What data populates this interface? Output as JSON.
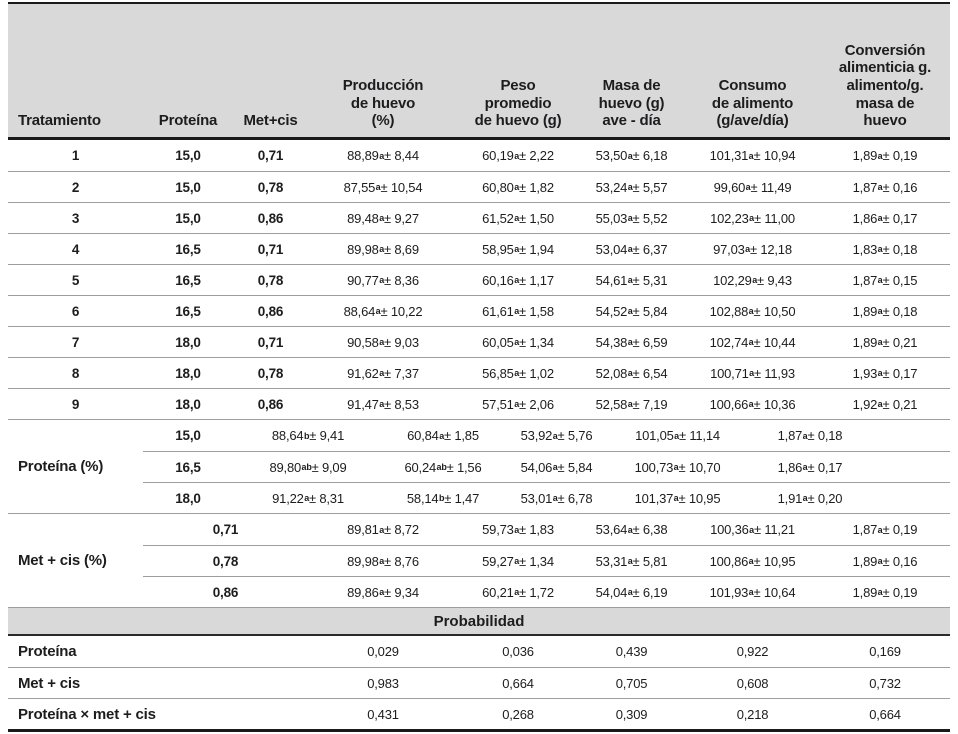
{
  "table": {
    "columns": [
      "Tratamiento",
      "Proteína",
      "Met+cis",
      "Producción\nde huevo\n(%)",
      "Peso\npromedio\nde huevo (g)",
      "Masa de\nhuevo (g)\nave - día",
      "Consumo\nde alimento\n(g/ave/día)",
      "Conversión\nalimenticia g.\nalimento/g.\nmasa de\nhuevo"
    ],
    "treatments": [
      {
        "tratamiento": "1",
        "proteina": "15,0",
        "metcis": "0,71",
        "values": [
          [
            "88,89",
            "a",
            "8,44"
          ],
          [
            "60,19",
            "a",
            "2,22"
          ],
          [
            "53,50",
            "a",
            "6,18"
          ],
          [
            "101,31",
            "a",
            "10,94"
          ],
          [
            "1,89",
            "a",
            "0,19"
          ]
        ]
      },
      {
        "tratamiento": "2",
        "proteina": "15,0",
        "metcis": "0,78",
        "values": [
          [
            "87,55",
            "a",
            "10,54"
          ],
          [
            "60,80",
            "a",
            "1,82"
          ],
          [
            "53,24",
            "a",
            "5,57"
          ],
          [
            "99,60",
            "a",
            "11,49"
          ],
          [
            "1,87",
            "a",
            "0,16"
          ]
        ]
      },
      {
        "tratamiento": "3",
        "proteina": "15,0",
        "metcis": "0,86",
        "values": [
          [
            "89,48",
            "a",
            "9,27"
          ],
          [
            "61,52",
            "a",
            "1,50"
          ],
          [
            "55,03",
            "a",
            "5,52"
          ],
          [
            "102,23",
            "a",
            "11,00"
          ],
          [
            "1,86",
            "a",
            "0,17"
          ]
        ]
      },
      {
        "tratamiento": "4",
        "proteina": "16,5",
        "metcis": "0,71",
        "values": [
          [
            "89,98",
            "a",
            "8,69"
          ],
          [
            "58,95",
            "a",
            "1,94"
          ],
          [
            "53,04",
            "a",
            "6,37"
          ],
          [
            "97,03",
            "a",
            "12,18"
          ],
          [
            "1,83",
            "a",
            "0,18"
          ]
        ]
      },
      {
        "tratamiento": "5",
        "proteina": "16,5",
        "metcis": "0,78",
        "values": [
          [
            "90,77",
            "a",
            "8,36"
          ],
          [
            "60,16",
            "a",
            "1,17"
          ],
          [
            "54,61",
            "a",
            "5,31"
          ],
          [
            "102,29",
            "a",
            "9,43"
          ],
          [
            "1,87",
            "a",
            "0,15"
          ]
        ]
      },
      {
        "tratamiento": "6",
        "proteina": "16,5",
        "metcis": "0,86",
        "values": [
          [
            "88,64",
            "a",
            "10,22"
          ],
          [
            "61,61",
            "a",
            "1,58"
          ],
          [
            "54,52",
            "a",
            "5,84"
          ],
          [
            "102,88",
            "a",
            "10,50"
          ],
          [
            "1,89",
            "a",
            "0,18"
          ]
        ]
      },
      {
        "tratamiento": "7",
        "proteina": "18,0",
        "metcis": "0,71",
        "values": [
          [
            "90,58",
            "a",
            "9,03"
          ],
          [
            "60,05",
            "a",
            "1,34"
          ],
          [
            "54,38",
            "a",
            "6,59"
          ],
          [
            "102,74",
            "a",
            "10,44"
          ],
          [
            "1,89",
            "a",
            "0,21"
          ]
        ]
      },
      {
        "tratamiento": "8",
        "proteina": "18,0",
        "metcis": "0,78",
        "values": [
          [
            "91,62",
            "a",
            "7,37"
          ],
          [
            "56,85",
            "a",
            "1,02"
          ],
          [
            "52,08",
            "a",
            "6,54"
          ],
          [
            "100,71",
            "a",
            "11,93"
          ],
          [
            "1,93",
            "a",
            "0,17"
          ]
        ]
      },
      {
        "tratamiento": "9",
        "proteina": "18,0",
        "metcis": "0,86",
        "values": [
          [
            "91,47",
            "a",
            "8,53"
          ],
          [
            "57,51",
            "a",
            "2,06"
          ],
          [
            "52,58",
            "a",
            "7,19"
          ],
          [
            "100,66",
            "a",
            "10,36"
          ],
          [
            "1,92",
            "a",
            "0,21"
          ]
        ]
      }
    ],
    "protein_section": {
      "label": "Proteína (%)",
      "rows": [
        {
          "level": "15,0",
          "values": [
            [
              "88,64",
              "b",
              "9,41"
            ],
            [
              "60,84",
              "a",
              "1,85"
            ],
            [
              "53,92",
              "a",
              "5,76"
            ],
            [
              "101,05",
              "a",
              "11,14"
            ],
            [
              "1,87",
              "a",
              "0,18"
            ]
          ]
        },
        {
          "level": "16,5",
          "values": [
            [
              "89,80",
              "ab",
              "9,09"
            ],
            [
              "60,24",
              "ab",
              "1,56"
            ],
            [
              "54,06",
              "a",
              "5,84"
            ],
            [
              "100,73",
              "a",
              "10,70"
            ],
            [
              "1,86",
              "a",
              "0,17"
            ]
          ]
        },
        {
          "level": "18,0",
          "values": [
            [
              "91,22",
              "a",
              "8,31"
            ],
            [
              "58,14",
              "b",
              "1,47"
            ],
            [
              "53,01",
              "a",
              "6,78"
            ],
            [
              "101,37",
              "a",
              "10,95"
            ],
            [
              "1,91",
              "a",
              "0,20"
            ]
          ]
        }
      ]
    },
    "metcis_section": {
      "label": "Met + cis (%)",
      "rows": [
        {
          "level": "0,71",
          "values": [
            [
              "89,81",
              "a",
              "8,72"
            ],
            [
              "59,73",
              "a",
              "1,83"
            ],
            [
              "53,64",
              "a",
              "6,38"
            ],
            [
              "100,36",
              "a",
              "11,21"
            ],
            [
              "1,87",
              "a",
              "0,19"
            ]
          ]
        },
        {
          "level": "0,78",
          "values": [
            [
              "89,98",
              "a",
              "8,76"
            ],
            [
              "59,27",
              "a",
              "1,34"
            ],
            [
              "53,31",
              "a",
              "5,81"
            ],
            [
              "100,86",
              "a",
              "10,95"
            ],
            [
              "1,89",
              "a",
              "0,16"
            ]
          ]
        },
        {
          "level": "0,86",
          "values": [
            [
              "89,86",
              "a",
              "9,34"
            ],
            [
              "60,21",
              "a",
              "1,72"
            ],
            [
              "54,04",
              "a",
              "6,19"
            ],
            [
              "101,93",
              "a",
              "10,64"
            ],
            [
              "1,89",
              "a",
              "0,19"
            ]
          ]
        }
      ]
    },
    "probability": {
      "header": "Probabilidad",
      "rows": [
        {
          "label": "Proteína",
          "values": [
            "0,029",
            "0,036",
            "0,439",
            "0,922",
            "0,169"
          ]
        },
        {
          "label": "Met + cis",
          "values": [
            "0,983",
            "0,664",
            "0,705",
            "0,608",
            "0,732"
          ]
        },
        {
          "label": "Proteína × met + cis",
          "values": [
            "0,431",
            "0,268",
            "0,309",
            "0,218",
            "0,664"
          ]
        }
      ]
    }
  }
}
